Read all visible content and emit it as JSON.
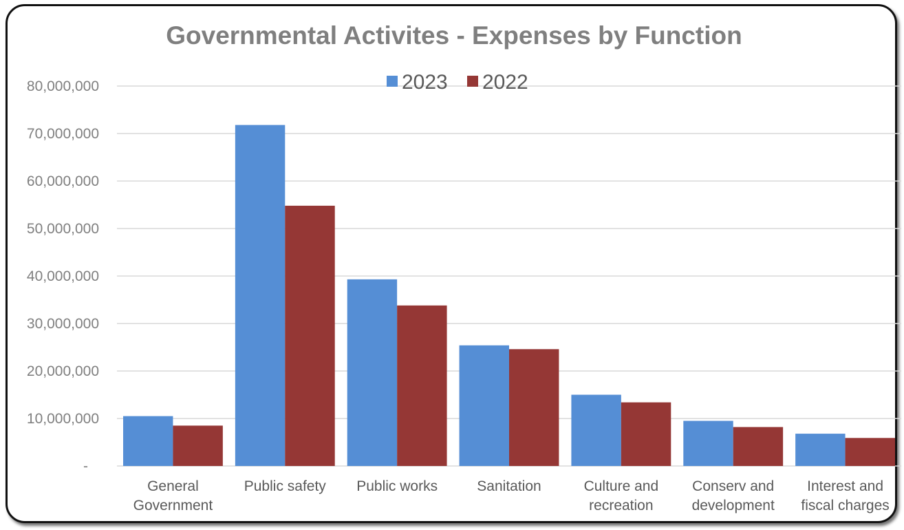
{
  "chart_data": {
    "type": "bar",
    "title": "Governmental Activites - Expenses by Function",
    "categories": [
      [
        "General",
        "Government"
      ],
      [
        "Public safety"
      ],
      [
        "Public works"
      ],
      [
        "Sanitation"
      ],
      [
        "Culture and",
        "recreation"
      ],
      [
        "Conserv and",
        "development"
      ],
      [
        "Interest and",
        "fiscal charges"
      ]
    ],
    "series": [
      {
        "name": "2023",
        "color": "#558ed5",
        "values": [
          10500000,
          71800000,
          39300000,
          25400000,
          15000000,
          9500000,
          6800000
        ]
      },
      {
        "name": "2022",
        "color": "#953735",
        "values": [
          8500000,
          54800000,
          33800000,
          24600000,
          13400000,
          8200000,
          5900000
        ]
      }
    ],
    "ylim": [
      0,
      80000000
    ],
    "yticks": [
      {
        "value": 0,
        "label": "-"
      },
      {
        "value": 10000000,
        "label": "10,000,000"
      },
      {
        "value": 20000000,
        "label": "20,000,000"
      },
      {
        "value": 30000000,
        "label": "30,000,000"
      },
      {
        "value": 40000000,
        "label": "40,000,000"
      },
      {
        "value": 50000000,
        "label": "50,000,000"
      },
      {
        "value": 60000000,
        "label": "60,000,000"
      },
      {
        "value": 70000000,
        "label": "70,000,000"
      },
      {
        "value": 80000000,
        "label": "80,000,000"
      }
    ],
    "grid": true,
    "legend_position": "top-center",
    "xlabel": "",
    "ylabel": ""
  }
}
